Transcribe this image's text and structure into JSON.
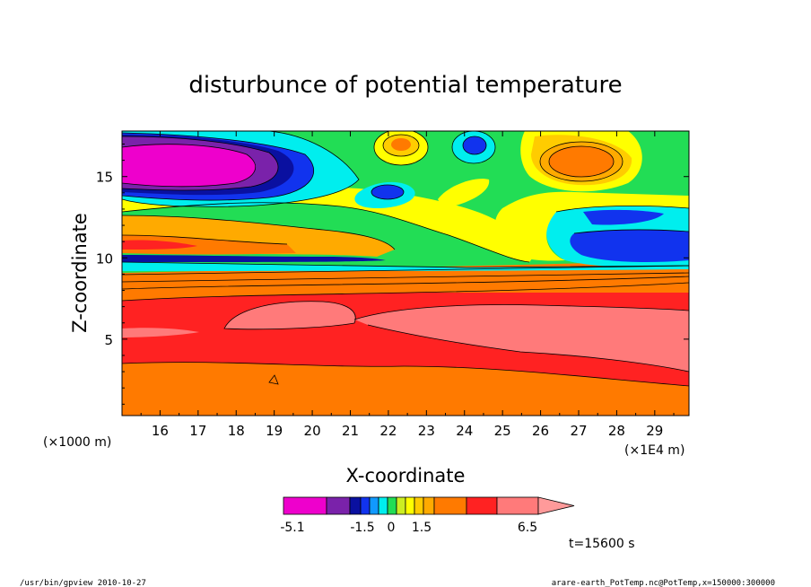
{
  "chart_data": {
    "type": "heatmap",
    "title": "disturbunce of potential temperature",
    "xlabel": "X-coordinate",
    "ylabel": "Z-coordinate",
    "x_unit": "(×1E4 m)",
    "y_unit": "(×1000 m)",
    "xlim": [
      15.0,
      29.9
    ],
    "ylim": [
      0.3,
      17.8
    ],
    "x_ticks": [
      16,
      17,
      18,
      19,
      20,
      21,
      22,
      23,
      24,
      25,
      26,
      27,
      28,
      29
    ],
    "y_ticks": [
      5,
      10,
      15
    ],
    "colorbar": {
      "colors": [
        "#ee00cc",
        "#7a22aa",
        "#0a10a0",
        "#1133ee",
        "#1199ff",
        "#00eeee",
        "#22dd55",
        "#ccee22",
        "#ffff00",
        "#ffcc00",
        "#ffaa00",
        "#ff7a00",
        "#ff2222",
        "#ff7a7a"
      ],
      "tick_labels": [
        "-5.1",
        "-1.5",
        "0",
        "1.5",
        "6.5"
      ]
    },
    "time_label": "t=15600 s",
    "footer_left": "/usr/bin/gpview   2010-10-27",
    "footer_right": "arare-earth_PotTemp.nc@PotTemp,x=150000:300000"
  }
}
